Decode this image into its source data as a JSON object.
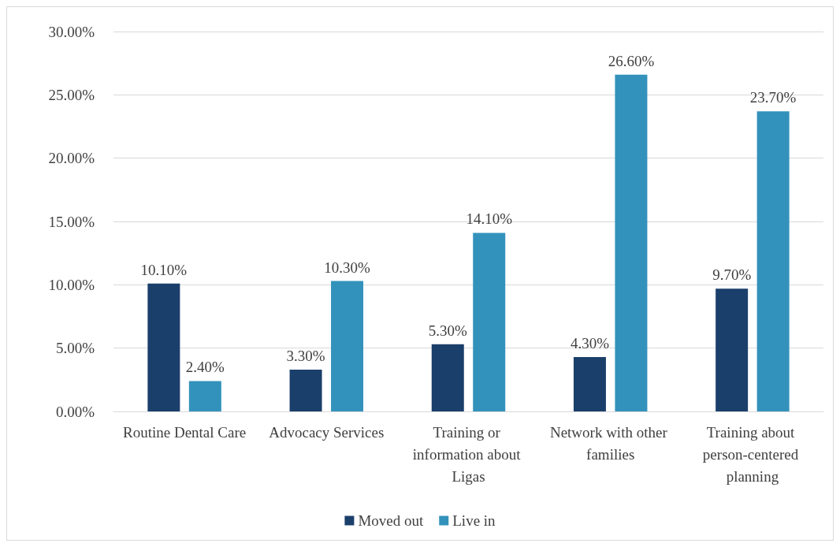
{
  "chart_data": {
    "type": "bar",
    "categories": [
      "Routine Dental Care",
      "Advocacy Services",
      "Training or information about Ligas",
      "Network with other families",
      "Training about person-centered planning"
    ],
    "series": [
      {
        "name": "Moved out",
        "color": "#1b3f6b",
        "values": [
          10.1,
          3.3,
          5.3,
          4.3,
          9.7
        ],
        "value_labels": [
          "10.10%",
          "3.30%",
          "5.30%",
          "4.30%",
          "9.70%"
        ]
      },
      {
        "name": "Live in",
        "color": "#3392bb",
        "values": [
          2.4,
          10.3,
          14.1,
          26.6,
          23.7
        ],
        "value_labels": [
          "2.40%",
          "10.30%",
          "14.10%",
          "26.60%",
          "23.70%"
        ]
      }
    ],
    "ylim": [
      0,
      30
    ],
    "yticks": [
      {
        "value": 0,
        "label": "0.00%"
      },
      {
        "value": 5,
        "label": "5.00%"
      },
      {
        "value": 10,
        "label": "10.00%"
      },
      {
        "value": 15,
        "label": "15.00%"
      },
      {
        "value": 20,
        "label": "20.00%"
      },
      {
        "value": 25,
        "label": "25.00%"
      },
      {
        "value": 30,
        "label": "30.00%"
      }
    ],
    "grid": "y",
    "legend": "bottom"
  }
}
